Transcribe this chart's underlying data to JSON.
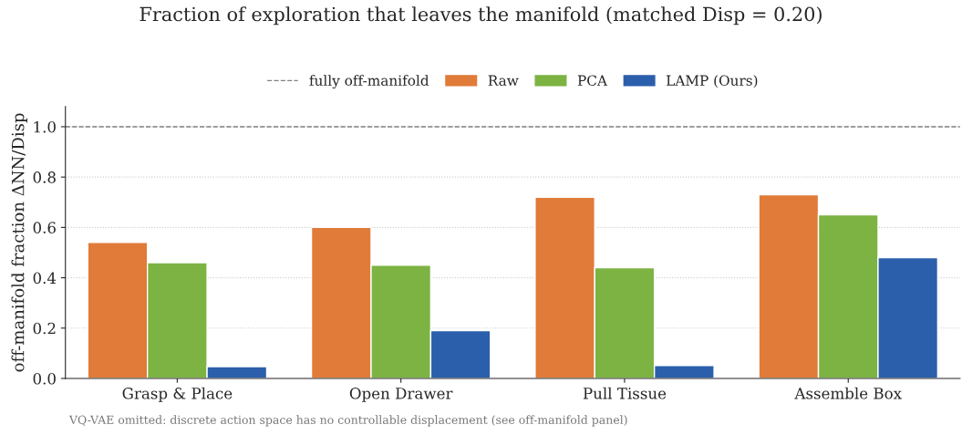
{
  "chart_data": {
    "type": "bar",
    "title": "Fraction of exploration that leaves the manifold (matched Disp = 0.20)",
    "ylabel": "off-manifold fraction ΔNN/Disp",
    "categories": [
      "Grasp & Place",
      "Open Drawer",
      "Pull Tissue",
      "Assemble Box"
    ],
    "series": [
      {
        "name": "Raw",
        "color": "#e07b39",
        "values": [
          0.54,
          0.6,
          0.72,
          0.73
        ]
      },
      {
        "name": "PCA",
        "color": "#7cb342",
        "values": [
          0.46,
          0.45,
          0.44,
          0.65
        ]
      },
      {
        "name": "LAMP (Ours)",
        "color": "#2c5fab",
        "values": [
          0.047,
          0.19,
          0.051,
          0.48
        ]
      }
    ],
    "ylim": [
      0,
      1.08
    ],
    "yticks": [
      {
        "value": 0,
        "label": "0.0"
      },
      0.2,
      0.4,
      0.6,
      0.8,
      {
        "value": 1,
        "label": "1.0"
      }
    ],
    "ref_lines": [
      {
        "axis": "y",
        "value": 1.0,
        "label": "fully off-manifold",
        "color": "#808080",
        "line_style": "dashed"
      }
    ],
    "grid": "y",
    "legend": "top",
    "annotations": [
      "VQ-VAE omitted: discrete action space has no controllable displacement (see off-manifold panel)"
    ]
  }
}
